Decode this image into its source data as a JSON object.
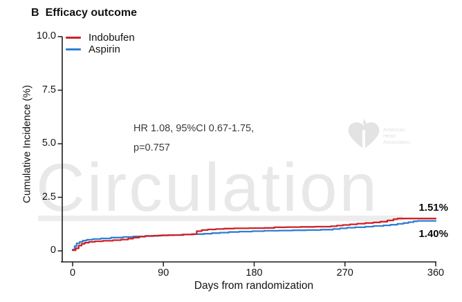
{
  "figure": {
    "panel_label": "B",
    "title": "Efficacy outcome",
    "watermark": {
      "text": "Circulation",
      "logo_lines": [
        "American",
        "Heart",
        "Association."
      ]
    }
  },
  "chart_data": {
    "type": "line",
    "subtype": "step-cumulative-incidence",
    "title": "B Efficacy outcome",
    "xlabel": "Days from randomization",
    "ylabel": "Cumulative Incidence (%)",
    "xlim": [
      0,
      360
    ],
    "ylim": [
      0,
      10
    ],
    "grid": false,
    "legend_position": "top-left-inside",
    "x_tick_values": [
      0,
      90,
      180,
      270,
      360
    ],
    "x_tick_labels": [
      "0",
      "90",
      "180",
      "270",
      "360"
    ],
    "y_tick_values": [
      10,
      7.5,
      5,
      2.5,
      0
    ],
    "y_tick_labels": [
      "10.0",
      "7.5",
      "5.0",
      "2.5",
      "0"
    ],
    "annotation": [
      "HR 1.08, 95%CI 0.67-1.75,",
      "p=0.757"
    ],
    "series": [
      {
        "name": "Aspirin",
        "color": "#2d7fd3",
        "final_value": 1.4,
        "end_label": "1.40%",
        "points": [
          [
            0,
            0.06
          ],
          [
            2,
            0.22
          ],
          [
            4,
            0.35
          ],
          [
            7,
            0.42
          ],
          [
            10,
            0.48
          ],
          [
            14,
            0.52
          ],
          [
            20,
            0.55
          ],
          [
            28,
            0.58
          ],
          [
            38,
            0.62
          ],
          [
            50,
            0.65
          ],
          [
            60,
            0.67
          ],
          [
            72,
            0.7
          ],
          [
            85,
            0.72
          ],
          [
            95,
            0.74
          ],
          [
            108,
            0.76
          ],
          [
            120,
            0.78
          ],
          [
            130,
            0.8
          ],
          [
            138,
            0.83
          ],
          [
            146,
            0.85
          ],
          [
            155,
            0.88
          ],
          [
            165,
            0.9
          ],
          [
            178,
            0.92
          ],
          [
            190,
            0.94
          ],
          [
            205,
            0.95
          ],
          [
            218,
            0.96
          ],
          [
            232,
            0.97
          ],
          [
            246,
            0.99
          ],
          [
            258,
            1.02
          ],
          [
            265,
            1.05
          ],
          [
            272,
            1.08
          ],
          [
            280,
            1.1
          ],
          [
            290,
            1.13
          ],
          [
            298,
            1.16
          ],
          [
            308,
            1.19
          ],
          [
            315,
            1.22
          ],
          [
            322,
            1.26
          ],
          [
            328,
            1.3
          ],
          [
            333,
            1.34
          ],
          [
            338,
            1.38
          ],
          [
            342,
            1.4
          ],
          [
            360,
            1.4
          ]
        ]
      },
      {
        "name": "Indobufen",
        "color": "#cf2027",
        "final_value": 1.51,
        "end_label": "1.51%",
        "points": [
          [
            0,
            0.03
          ],
          [
            3,
            0.12
          ],
          [
            6,
            0.25
          ],
          [
            9,
            0.33
          ],
          [
            12,
            0.38
          ],
          [
            16,
            0.42
          ],
          [
            22,
            0.45
          ],
          [
            30,
            0.47
          ],
          [
            40,
            0.5
          ],
          [
            48,
            0.53
          ],
          [
            55,
            0.57
          ],
          [
            60,
            0.62
          ],
          [
            66,
            0.66
          ],
          [
            72,
            0.69
          ],
          [
            80,
            0.71
          ],
          [
            88,
            0.73
          ],
          [
            100,
            0.74
          ],
          [
            110,
            0.76
          ],
          [
            118,
            0.78
          ],
          [
            123,
            0.92
          ],
          [
            128,
            0.97
          ],
          [
            134,
            1.0
          ],
          [
            142,
            1.02
          ],
          [
            150,
            1.04
          ],
          [
            160,
            1.05
          ],
          [
            175,
            1.06
          ],
          [
            190,
            1.07
          ],
          [
            200,
            1.1
          ],
          [
            212,
            1.11
          ],
          [
            226,
            1.12
          ],
          [
            240,
            1.13
          ],
          [
            256,
            1.15
          ],
          [
            262,
            1.18
          ],
          [
            268,
            1.21
          ],
          [
            275,
            1.24
          ],
          [
            282,
            1.27
          ],
          [
            290,
            1.3
          ],
          [
            298,
            1.33
          ],
          [
            305,
            1.36
          ],
          [
            312,
            1.42
          ],
          [
            318,
            1.48
          ],
          [
            322,
            1.51
          ],
          [
            360,
            1.51
          ]
        ]
      }
    ]
  }
}
